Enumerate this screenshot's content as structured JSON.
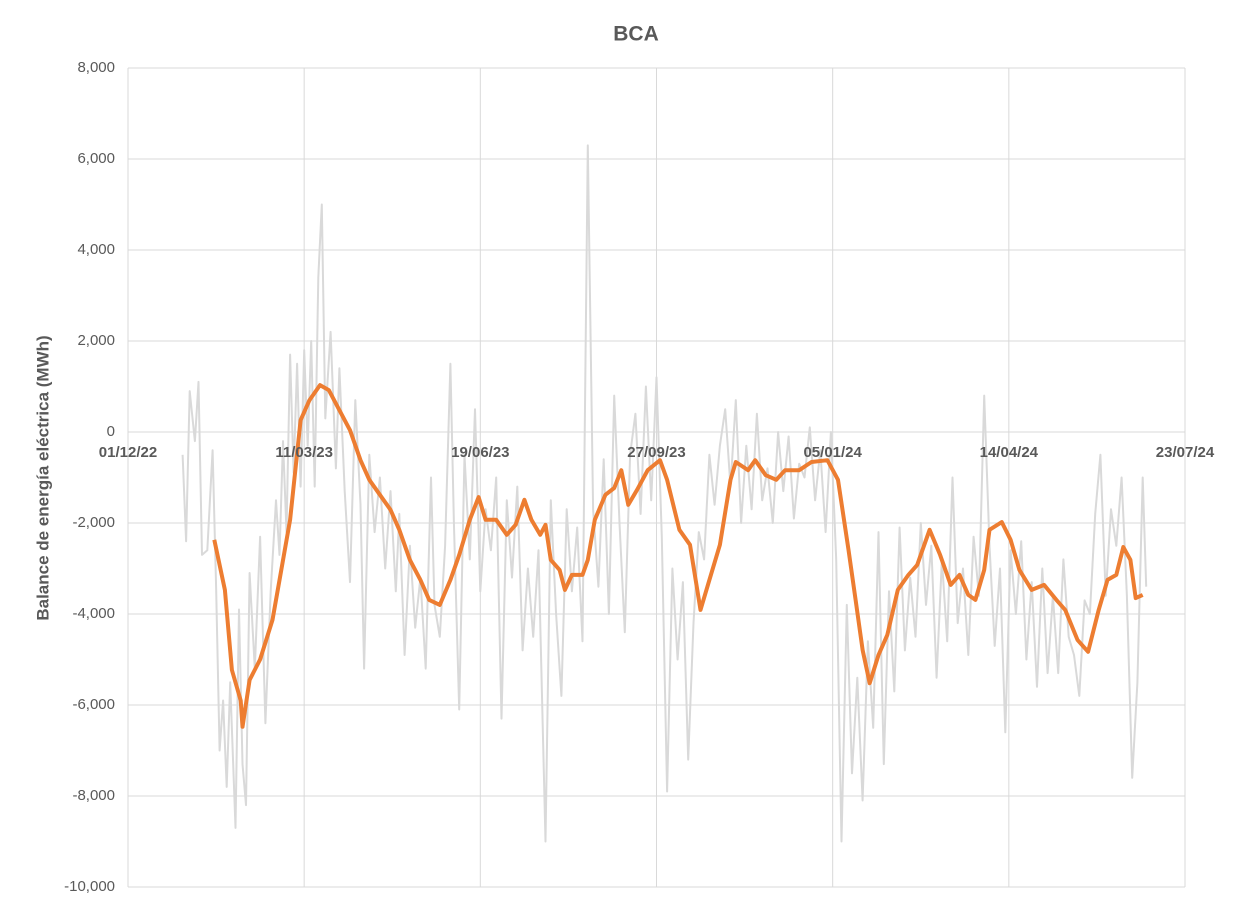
{
  "chart_data": {
    "type": "line",
    "title": "BCA",
    "y_label": "Balance de energía eléctrica (MWh)",
    "xlim": [
      44896,
      45496
    ],
    "xticks": [
      {
        "value": 44896,
        "label": "01/12/22"
      },
      {
        "value": 44996,
        "label": "11/03/23"
      },
      {
        "value": 45096,
        "label": "19/06/23"
      },
      {
        "value": 45196,
        "label": "27/09/23"
      },
      {
        "value": 45296,
        "label": "05/01/24"
      },
      {
        "value": 45396,
        "label": "14/04/24"
      },
      {
        "value": 45496,
        "label": "23/07/24"
      }
    ],
    "ylim": [
      -10000,
      8000
    ],
    "yticks": [
      {
        "value": -10000,
        "label": "-10,000"
      },
      {
        "value": -8000,
        "label": "-8,000"
      },
      {
        "value": -6000,
        "label": "-6,000"
      },
      {
        "value": -4000,
        "label": "-4,000"
      },
      {
        "value": -2000,
        "label": "-2,000"
      },
      0,
      {
        "value": 2000,
        "label": "2,000"
      },
      {
        "value": 4000,
        "label": "4,000"
      },
      {
        "value": 6000,
        "label": "6,000"
      },
      {
        "value": 8000,
        "label": "8,000"
      }
    ],
    "grid": true,
    "series": [
      {
        "color": "#d9d9d9",
        "width": 2,
        "x": [
          44927,
          44929,
          44931,
          44934,
          44936,
          44938,
          44941,
          44944,
          44946,
          44948,
          44950,
          44952,
          44954,
          44957,
          44959,
          44961,
          44963,
          44965,
          44968,
          44971,
          44974,
          44977,
          44980,
          44982,
          44984,
          44986,
          44988,
          44990,
          44992,
          44994,
          44996,
          44998,
          45000,
          45002,
          45004,
          45006,
          45008,
          45011,
          45014,
          45016,
          45019,
          45022,
          45025,
          45028,
          45030,
          45033,
          45036,
          45039,
          45042,
          45045,
          45048,
          45050,
          45053,
          45056,
          45059,
          45062,
          45065,
          45068,
          45070,
          45073,
          45076,
          45079,
          45081,
          45084,
          45087,
          45090,
          45093,
          45096,
          45099,
          45102,
          45105,
          45108,
          45111,
          45114,
          45117,
          45120,
          45123,
          45126,
          45129,
          45133,
          45136,
          45139,
          45142,
          45145,
          45148,
          45151,
          45154,
          45157,
          45160,
          45163,
          45166,
          45169,
          45172,
          45175,
          45178,
          45181,
          45184,
          45187,
          45190,
          45193,
          45196,
          45199,
          45202,
          45205,
          45208,
          45211,
          45214,
          45217,
          45220,
          45223,
          45226,
          45229,
          45232,
          45235,
          45238,
          45241,
          45244,
          45247,
          45250,
          45253,
          45256,
          45259,
          45262,
          45265,
          45268,
          45271,
          45274,
          45277,
          45280,
          45283,
          45286,
          45289,
          45292,
          45295,
          45298,
          45301,
          45304,
          45307,
          45310,
          45313,
          45316,
          45319,
          45322,
          45325,
          45328,
          45331,
          45334,
          45337,
          45340,
          45343,
          45346,
          45349,
          45352,
          45355,
          45358,
          45361,
          45364,
          45367,
          45370,
          45373,
          45376,
          45379,
          45382,
          45385,
          45388,
          45391,
          45394,
          45397,
          45400,
          45403,
          45406,
          45409,
          45412,
          45415,
          45418,
          45421,
          45424,
          45427,
          45430,
          45433,
          45436,
          45439,
          45442,
          45445,
          45448,
          45451,
          45454,
          45457,
          45460,
          45463,
          45466,
          45469,
          45472,
          45474
        ],
        "values": [
          -500,
          -2400,
          900,
          -200,
          1100,
          -2700,
          -2600,
          -400,
          -3400,
          -7000,
          -5900,
          -7800,
          -5500,
          -8700,
          -3900,
          -7300,
          -8200,
          -3100,
          -5200,
          -2300,
          -6400,
          -3500,
          -1500,
          -2700,
          -200,
          -2200,
          1700,
          -900,
          1500,
          -1200,
          1800,
          -300,
          2000,
          -1200,
          3400,
          5000,
          300,
          2200,
          -800,
          1400,
          -1300,
          -3300,
          700,
          -1600,
          -5200,
          -500,
          -2200,
          -1000,
          -3000,
          -1300,
          -3500,
          -1800,
          -4900,
          -2500,
          -4300,
          -3200,
          -5200,
          -1000,
          -3800,
          -4500,
          -2500,
          1500,
          -2000,
          -6100,
          -500,
          -2800,
          500,
          -3500,
          -1700,
          -2600,
          -1000,
          -6300,
          -1500,
          -3200,
          -1200,
          -4800,
          -3000,
          -4500,
          -2600,
          -9000,
          -1500,
          -4000,
          -5800,
          -1700,
          -3500,
          -2100,
          -4600,
          6300,
          -1700,
          -3400,
          -600,
          -4000,
          800,
          -2000,
          -4400,
          -500,
          400,
          -1800,
          1000,
          -1500,
          1200,
          -2300,
          -7900,
          -3000,
          -5000,
          -3300,
          -7200,
          -4200,
          -2200,
          -2800,
          -500,
          -1600,
          -300,
          500,
          -1200,
          700,
          -2000,
          -300,
          -1700,
          400,
          -1500,
          -800,
          -2000,
          0,
          -1300,
          -100,
          -1900,
          -700,
          -1000,
          100,
          -1500,
          -400,
          -2200,
          0,
          -2800,
          -9000,
          -3800,
          -7500,
          -5400,
          -8100,
          -4600,
          -6500,
          -2200,
          -7300,
          -3500,
          -5700,
          -2100,
          -4800,
          -3200,
          -4500,
          -2000,
          -3800,
          -2500,
          -5400,
          -2800,
          -4600,
          -1000,
          -4200,
          -3000,
          -4900,
          -2300,
          -3600,
          800,
          -2500,
          -4700,
          -3000,
          -6600,
          -2600,
          -4000,
          -2400,
          -5000,
          -3300,
          -5600,
          -3000,
          -5300,
          -3600,
          -5300,
          -2800,
          -4500,
          -4900,
          -5800,
          -3700,
          -4000,
          -1800,
          -500,
          -3600,
          -1700,
          -2500,
          -1000,
          -3600,
          -7600,
          -5500,
          -1000,
          -3400
        ]
      },
      {
        "color": "#ed7d31",
        "width": 4,
        "x": [
          44945,
          44951,
          44955,
          44960,
          44961,
          44965,
          44971,
          44978,
          44983,
          44988,
          44994,
          44999,
          45005,
          45010,
          45016,
          45022,
          45028,
          45033,
          45039,
          45045,
          45050,
          45056,
          45062,
          45067,
          45073,
          45079,
          45084,
          45090,
          45095,
          45099,
          45105,
          45111,
          45116,
          45121,
          45125,
          45130,
          45133,
          45136,
          45141,
          45144,
          45148,
          45154,
          45157,
          45161,
          45167,
          45172,
          45176,
          45180,
          45185,
          45191,
          45198,
          45202,
          45209,
          45215,
          45221,
          45226,
          45232,
          45238,
          45241,
          45248,
          45252,
          45258,
          45264,
          45269,
          45277,
          45284,
          45293,
          45299,
          45305,
          45309,
          45313,
          45317,
          45322,
          45327,
          45333,
          45339,
          45344,
          45351,
          45357,
          45363,
          45368,
          45373,
          45377,
          45382,
          45385,
          45392,
          45397,
          45402,
          45409,
          45416,
          45423,
          45428,
          45435,
          45441,
          45447,
          45452,
          45457,
          45461,
          45465,
          45468,
          45472
        ],
        "values": [
          -2370,
          -3470,
          -5230,
          -5900,
          -6480,
          -5450,
          -5000,
          -4130,
          -3030,
          -1930,
          260,
          700,
          1030,
          920,
          480,
          40,
          -620,
          -1050,
          -1380,
          -1710,
          -2150,
          -2810,
          -3250,
          -3690,
          -3800,
          -3250,
          -2700,
          -1930,
          -1430,
          -1930,
          -1930,
          -2260,
          -2040,
          -1490,
          -1930,
          -2260,
          -2040,
          -2810,
          -3030,
          -3470,
          -3140,
          -3140,
          -2810,
          -1930,
          -1380,
          -1230,
          -840,
          -1600,
          -1270,
          -840,
          -620,
          -1050,
          -2150,
          -2480,
          -3910,
          -3250,
          -2480,
          -1050,
          -660,
          -840,
          -620,
          -950,
          -1050,
          -840,
          -840,
          -660,
          -620,
          -1050,
          -2590,
          -3690,
          -4790,
          -5520,
          -4900,
          -4460,
          -3470,
          -3140,
          -2920,
          -2150,
          -2700,
          -3360,
          -3140,
          -3580,
          -3690,
          -3030,
          -2150,
          -1980,
          -2370,
          -3030,
          -3470,
          -3360,
          -3690,
          -3910,
          -4570,
          -4830,
          -3910,
          -3250,
          -3140,
          -2530,
          -2810,
          -3650,
          -3580
        ]
      }
    ]
  }
}
